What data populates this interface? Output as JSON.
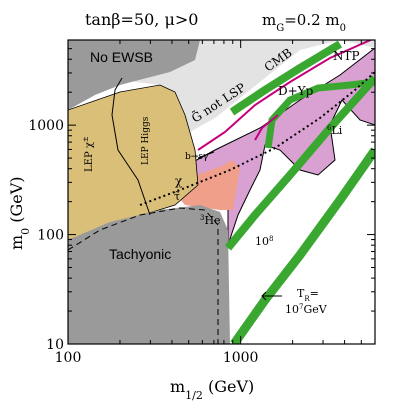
{
  "chart_data": {
    "type": "area",
    "title_left": "tanβ=50, μ>0",
    "title_right": "m",
    "title_right_sub": "G",
    "title_right_tail": "=0.2 m",
    "title_right_sub2": "0",
    "xlabel": "m",
    "xlabel_sub": "1/2",
    "xlabel_unit": " (GeV)",
    "ylabel": "m",
    "ylabel_sub": "0",
    "ylabel_unit": " (GeV)",
    "x_scale": "log",
    "y_scale": "log",
    "xlim": [
      100,
      6000
    ],
    "ylim": [
      10,
      6000
    ],
    "x_ticks": [
      {
        "value": 100,
        "label": "100"
      },
      {
        "value": 1000,
        "label": "1000"
      }
    ],
    "y_ticks": [
      {
        "value": 10,
        "label": "10"
      },
      {
        "value": 100,
        "label": "100"
      },
      {
        "value": 1000,
        "label": "1000"
      }
    ],
    "grid": false,
    "regions": [
      {
        "label": "No EWSB",
        "color": "#9a9a9a"
      },
      {
        "label": "Tachyonic",
        "color": "#9a9a9a"
      },
      {
        "label": "G̃ not LSP",
        "color": "#e3e3e3"
      },
      {
        "label": "LEP χ±",
        "color": "#d9bf78"
      },
      {
        "label": "LEP Higgs",
        "color": "#d9bf78"
      },
      {
        "label": "D+Yp",
        "color": "#d9a0d2"
      },
      {
        "label": "⁶Li",
        "color": "#d9a0d2"
      },
      {
        "label": "³He",
        "color": "#d9a0d2"
      },
      {
        "label": "CMB",
        "color": "#c4007a"
      },
      {
        "label": "NTP",
        "color": "#000000"
      },
      {
        "label": "b→sγ",
        "color": "#f0a08a"
      },
      {
        "label": "χ",
        "color": "#000000"
      },
      {
        "label": "τ̃",
        "color": "#000000"
      }
    ],
    "bands": [
      {
        "label": "10⁸",
        "color": "#3aa830"
      },
      {
        "label": "T_R = 10⁷ GeV",
        "color": "#3aa830"
      }
    ],
    "annotations": {
      "no_ewsb": "No EWSB",
      "g_not_lsp": "G̃ not LSP",
      "cmb": "CMB",
      "ntp": "NTP",
      "lep_chargino": "LEP χ",
      "lep_chargino_sup": "±",
      "lep_higgs": "LEP Higgs",
      "d_yp": "D+Yp",
      "li6": "Li",
      "li6_sup": "6",
      "bsg": "b→sγ",
      "chi": "χ",
      "stau": "τ̃",
      "he3": "He",
      "he3_sup": "3",
      "tachyonic": "Tachyonic",
      "ten8": "10",
      "ten8_sup": "8",
      "tr_line1": "T",
      "tr_line1_sub": "R",
      "tr_line1_tail": "=",
      "tr_line2": "10",
      "tr_line2_sup": "7",
      "tr_line2_tail": "GeV"
    }
  }
}
